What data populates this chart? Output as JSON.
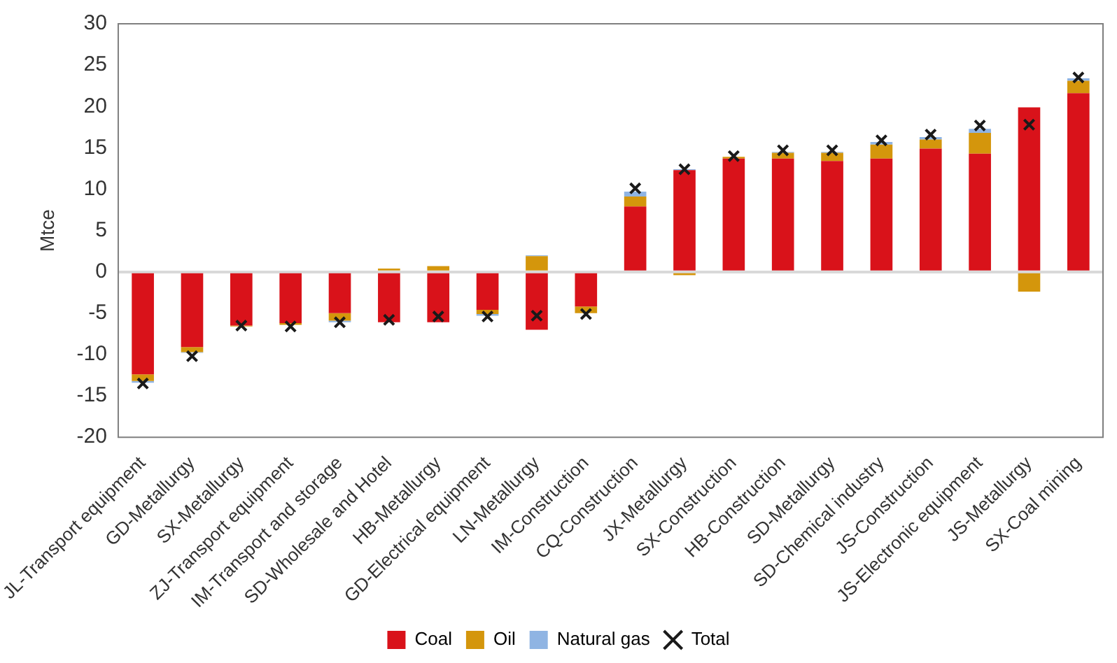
{
  "chart_data": {
    "type": "bar",
    "stacked": true,
    "ylabel": "Mtce",
    "categories": [
      "JL-Transport equipment",
      "GD-Metallurgy",
      "SX-Metallurgy",
      "ZJ-Transport equipment",
      "IM-Transport and storage",
      "SD-Wholesale and Hotel",
      "HB-Metallurgy",
      "GD-Electrical equipment",
      "LN-Metallurgy",
      "IM-Construction",
      "CQ-Construction",
      "JX-Metallurgy",
      "SX-Construction",
      "HB-Construction",
      "SD-Metallurgy",
      "SD-Chemical industry",
      "JS-Construction",
      "JS-Electronic equipment",
      "JS-Metallurgy",
      "SX-Coal mining"
    ],
    "series": [
      {
        "name": "Coal",
        "color": "#d9121a",
        "values": [
          -12.4,
          -9.1,
          -6.5,
          -6.2,
          -5.0,
          -6.1,
          -6.1,
          -4.6,
          -7.0,
          -4.2,
          7.9,
          12.3,
          13.7,
          13.7,
          13.4,
          13.7,
          14.9,
          14.3,
          19.9,
          21.6
        ]
      },
      {
        "name": "Oil",
        "color": "#d4960c",
        "values": [
          -0.8,
          -0.6,
          -0.1,
          -0.2,
          -0.9,
          0.4,
          0.7,
          -0.5,
          1.9,
          -0.8,
          1.2,
          -0.4,
          0.2,
          0.7,
          1.0,
          1.7,
          1.1,
          2.5,
          -2.4,
          1.5
        ]
      },
      {
        "name": "Natural gas",
        "color": "#8fb4e3",
        "values": [
          -0.2,
          -0.1,
          0,
          0,
          -0.2,
          0,
          0,
          -0.2,
          0.1,
          0,
          0.6,
          0.1,
          0,
          0.1,
          0.1,
          0.3,
          0.3,
          0.5,
          0,
          0.3
        ]
      },
      {
        "name": "Total",
        "type": "scatter",
        "marker": "cross",
        "color": "#1a1a1a",
        "x": [
          "JL-Transport equipment",
          "GD-Metallurgy",
          "SX-Metallurgy",
          "ZJ-Transport equipment",
          "IM-Transport and storage",
          "SD-Wholesale and Hotel",
          "HB-Metallurgy",
          "GD-Electrical equipment",
          "LN-Metallurgy",
          "IM-Construction",
          "CQ-Construction",
          "JX-Metallurgy",
          "SX-Construction",
          "HB-Construction",
          "SD-Metallurgy",
          "SD-Chemical industry",
          "JS-Construction",
          "JS-Electronic equipment",
          "JS-Metallurgy",
          "SX-Coal mining"
        ],
        "values": [
          -13.5,
          -10.2,
          -6.5,
          -6.6,
          -6.1,
          -5.8,
          -5.4,
          -5.4,
          -5.3,
          -5.1,
          10.1,
          12.4,
          14.0,
          14.7,
          14.7,
          15.9,
          16.6,
          17.7,
          17.8,
          23.5
        ]
      }
    ],
    "ylim": [
      -20,
      30
    ],
    "yticks": [
      -20,
      -15,
      -10,
      -5,
      0,
      5,
      10,
      15,
      20,
      25,
      30
    ],
    "legend": "bottom"
  }
}
